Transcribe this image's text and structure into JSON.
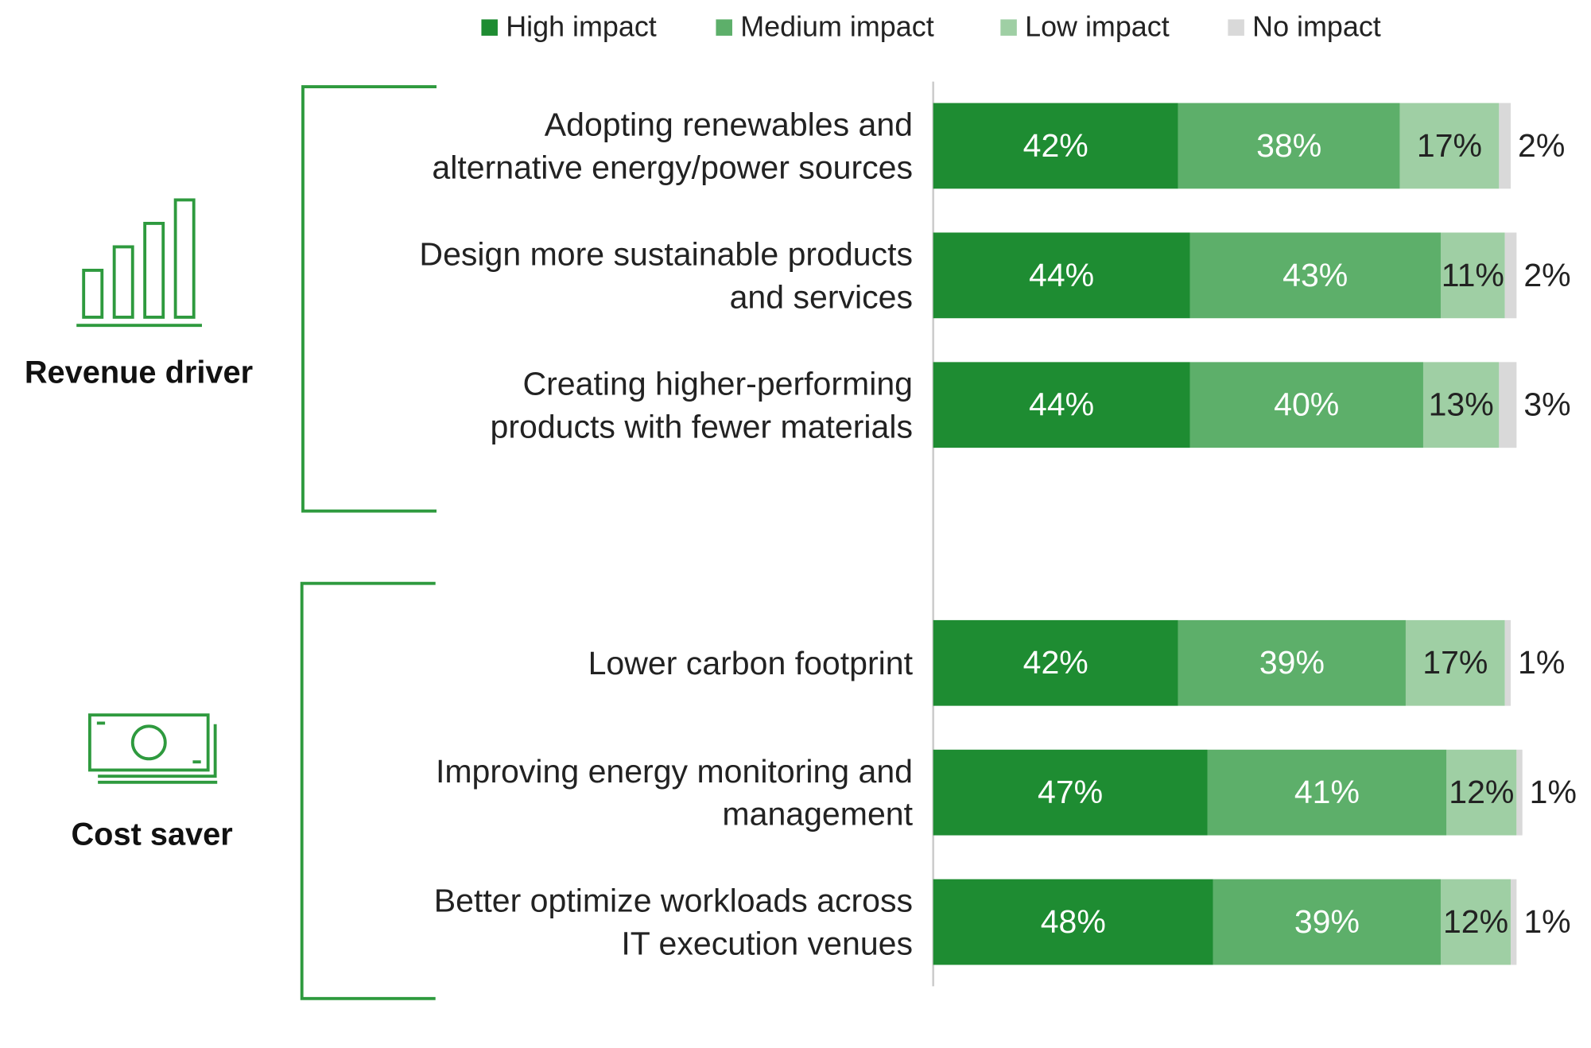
{
  "chart_data": {
    "type": "bar",
    "orientation": "horizontal",
    "stacked": true,
    "legend": "top",
    "xlim": [
      0,
      100
    ],
    "groups": [
      {
        "title": "Revenue driver",
        "categories": [
          "Adopting renewables and\nalternative energy/power sources",
          "Design more sustainable products\nand services",
          "Creating higher-performing\nproducts with fewer materials"
        ]
      },
      {
        "title": "Cost saver",
        "categories": [
          "Lower carbon footprint",
          "Improving energy monitoring and\nmanagement",
          "Better optimize workloads across\nIT execution venues"
        ]
      }
    ],
    "series": [
      {
        "name": "High impact",
        "color": "#1e8c32",
        "values": [
          42,
          44,
          44,
          42,
          47,
          48
        ],
        "value_labels": [
          "42%",
          "44%",
          "44%",
          "42%",
          "47%",
          "48%"
        ]
      },
      {
        "name": "Medium impact",
        "color": "#5daf6a",
        "values": [
          38,
          43,
          40,
          39,
          41,
          39
        ],
        "value_labels": [
          "38%",
          "43%",
          "40%",
          "39%",
          "41%",
          "39%"
        ]
      },
      {
        "name": "Low impact",
        "color": "#9fcfa4",
        "values": [
          17,
          11,
          13,
          17,
          12,
          12
        ],
        "value_labels": [
          "17%",
          "11%",
          "13%",
          "17%",
          "12%",
          "12%"
        ]
      },
      {
        "name": "No impact",
        "color": "#d9d9d9",
        "values": [
          2,
          2,
          3,
          1,
          1,
          1
        ],
        "value_labels": [
          "2%",
          "2%",
          "3%",
          "1%",
          "1%",
          "1%"
        ]
      }
    ]
  }
}
